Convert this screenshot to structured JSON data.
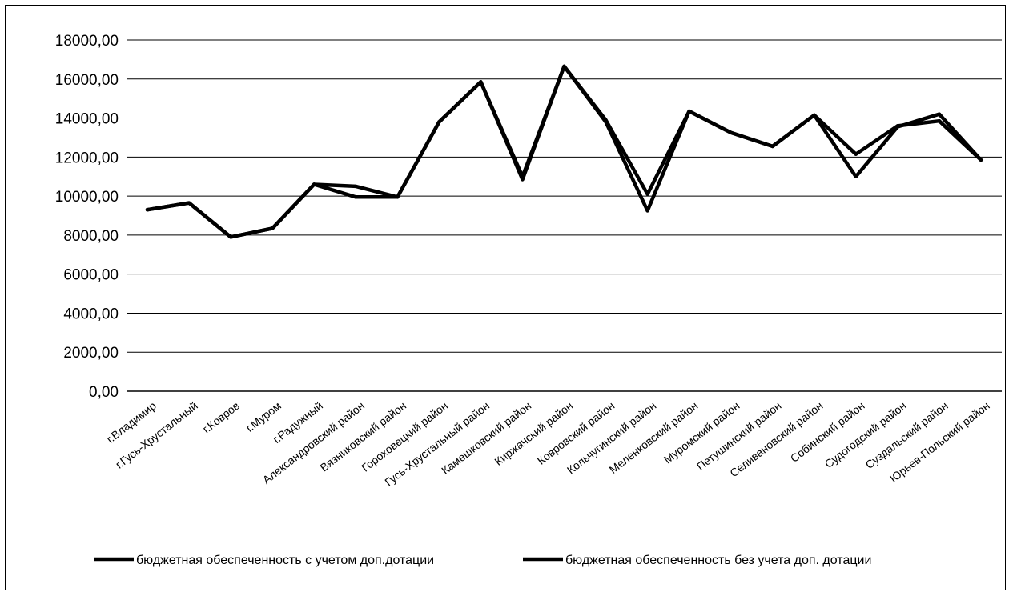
{
  "chart_data": {
    "type": "line",
    "ylim": [
      0,
      18000
    ],
    "y_ticks": [
      0,
      2000,
      4000,
      6000,
      8000,
      10000,
      12000,
      14000,
      16000,
      18000
    ],
    "y_tick_labels": [
      "0,00",
      "2000,00",
      "4000,00",
      "6000,00",
      "8000,00",
      "10000,00",
      "12000,00",
      "14000,00",
      "16000,00",
      "18000,00"
    ],
    "grid": true,
    "legend_position": "bottom",
    "categories": [
      "г.Владимир",
      "г.Гусь-Хрустальный",
      "г.Ковров",
      "г.Муром",
      "г.Радужный",
      "Александровский район",
      "Вязниковский район",
      "Гороховецкий район",
      "Гусь-Хрустальный район",
      "Камешковский район",
      "Киржачский район",
      "Ковровский район",
      "Кольчугинский район",
      "Меленковский район",
      "Муромский район",
      "Петушинский район",
      "Селивановский район",
      "Собинский район",
      "Судогодский район",
      "Суздальский район",
      "Юрьев-Польский район"
    ],
    "series": [
      {
        "name": "бюджетная обеспеченность с учетом доп.дотации",
        "color": "#000000",
        "values": [
          9300,
          9650,
          7900,
          8350,
          10600,
          10500,
          9950,
          13800,
          15850,
          11000,
          16650,
          13900,
          10100,
          14350,
          13250,
          12550,
          14150,
          12150,
          13600,
          13850,
          11850
        ]
      },
      {
        "name": "бюджетная обеспеченность без учета доп. дотации",
        "color": "#000000",
        "values": [
          9300,
          9650,
          7900,
          8350,
          10600,
          9950,
          9950,
          13800,
          15850,
          10850,
          16650,
          13800,
          9250,
          14350,
          13250,
          12550,
          14150,
          11000,
          13550,
          14200,
          11850
        ]
      }
    ]
  }
}
